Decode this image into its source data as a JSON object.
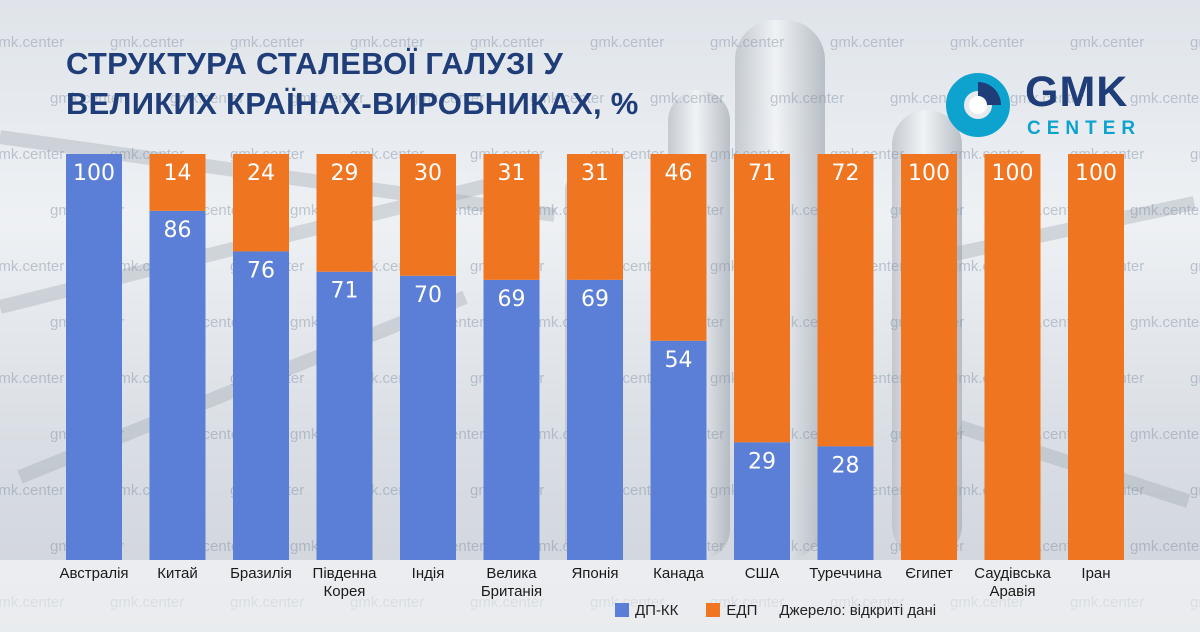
{
  "title_line1": "СТРУКТУРА СТАЛЕВОЇ ГАЛУЗІ У",
  "title_line2": "ВЕЛИКИХ КРАЇНАХ-ВИРОБНИКАХ, %",
  "logo": {
    "main": "GMK",
    "sub": "CENTER"
  },
  "watermark": "gmk.center",
  "source": "Джерело: відкриті дані",
  "colors": {
    "dp_kk": "#5b7fd6",
    "edp": "#ef7521",
    "title": "#1f3d78",
    "logo_accent": "#0ea3cf"
  },
  "chart_data": {
    "type": "bar",
    "stacked": true,
    "title": "СТРУКТУРА СТАЛЕВОЇ ГАЛУЗІ У ВЕЛИКИХ КРАЇНАХ-ВИРОБНИКАХ, %",
    "xlabel": "",
    "ylabel": "",
    "ylim": [
      0,
      100
    ],
    "grid": false,
    "legend": "bottom",
    "categories": [
      [
        "Австралія"
      ],
      [
        "Китай"
      ],
      [
        "Бразилія"
      ],
      [
        "Південна",
        "Корея"
      ],
      [
        "Індія"
      ],
      [
        "Велика",
        "Британія"
      ],
      [
        "Японія"
      ],
      [
        "Канада"
      ],
      [
        "США"
      ],
      [
        "Туреччина"
      ],
      [
        "Єгипет"
      ],
      [
        "Саудівська",
        "Аравія"
      ],
      [
        "Іран"
      ]
    ],
    "series": [
      {
        "name": "ДП-КК",
        "color": "#5b7fd6",
        "values": [
          100,
          86,
          76,
          71,
          70,
          69,
          69,
          54,
          29,
          28,
          0,
          0,
          0
        ]
      },
      {
        "name": "ЕДП",
        "color": "#ef7521",
        "values": [
          0,
          14,
          24,
          29,
          30,
          31,
          31,
          46,
          71,
          72,
          100,
          100,
          100
        ]
      }
    ]
  }
}
